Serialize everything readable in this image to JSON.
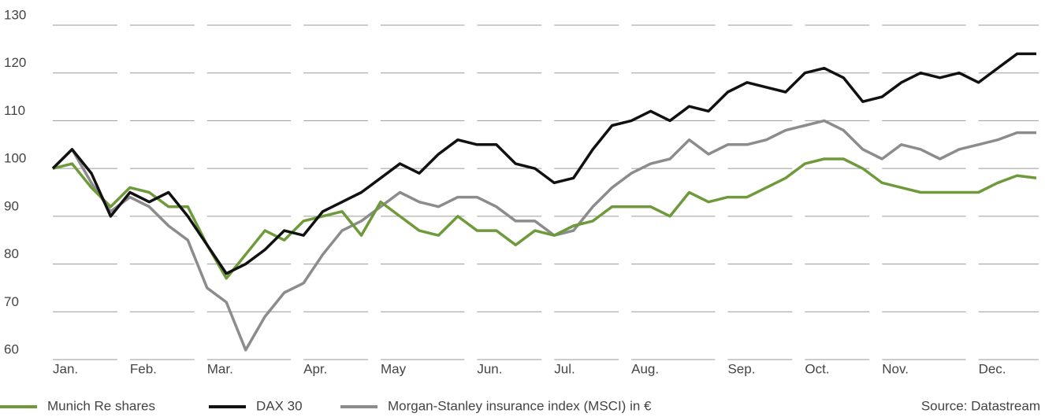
{
  "chart_data": {
    "type": "line",
    "categories": [
      "Jan.",
      null,
      null,
      null,
      "Feb.",
      null,
      null,
      null,
      "Mar.",
      null,
      null,
      null,
      null,
      "Apr.",
      null,
      null,
      null,
      "May",
      null,
      null,
      null,
      null,
      "Jun.",
      null,
      null,
      null,
      "Jul.",
      null,
      null,
      null,
      "Aug.",
      null,
      null,
      null,
      null,
      "Sep.",
      null,
      null,
      null,
      "Oct.",
      null,
      null,
      null,
      "Nov.",
      null,
      null,
      null,
      null,
      "Dec.",
      null,
      null,
      null
    ],
    "series": [
      {
        "name": "Munich Re shares",
        "color": "#6f9a3c",
        "values": [
          100,
          101,
          96,
          92,
          96,
          95,
          92,
          92,
          84,
          77,
          82,
          87,
          85,
          89,
          90,
          91,
          86,
          93,
          90,
          87,
          86,
          90,
          87,
          87,
          84,
          87,
          86,
          88,
          89,
          92,
          92,
          92,
          90,
          95,
          93,
          94,
          94,
          96,
          98,
          101,
          102,
          102,
          100,
          97,
          96,
          95,
          95,
          95,
          95,
          97,
          98.5,
          98
        ]
      },
      {
        "name": "DAX 30",
        "color": "#111111",
        "values": [
          100,
          104,
          99,
          90,
          95,
          93,
          95,
          90,
          84,
          78,
          80,
          83,
          87,
          86,
          91,
          93,
          95,
          98,
          101,
          99,
          103,
          106,
          105,
          105,
          101,
          100,
          97,
          98,
          104,
          109,
          110,
          112,
          110,
          113,
          112,
          116,
          118,
          117,
          116,
          120,
          121,
          119,
          114,
          115,
          118,
          120,
          119,
          120,
          118,
          121,
          124,
          124
        ]
      },
      {
        "name": "Morgan-Stanley insurance index (MSCI) in €",
        "color": "#8c8c8c",
        "values": [
          100,
          104,
          97,
          91,
          94,
          92,
          88,
          85,
          75,
          72,
          62,
          69,
          74,
          76,
          82,
          87,
          89,
          92,
          95,
          93,
          92,
          94,
          94,
          92,
          89,
          89,
          86,
          87,
          92,
          96,
          99,
          101,
          102,
          106,
          103,
          105,
          105,
          106,
          108,
          109,
          110,
          108,
          104,
          102,
          105,
          104,
          102,
          104,
          105,
          106,
          107.5,
          107.5
        ]
      }
    ],
    "ylim": [
      60,
      130
    ],
    "yticks": [
      60,
      70,
      80,
      90,
      100,
      110,
      120,
      130
    ],
    "grid": true,
    "source": "Source: Datastream"
  }
}
